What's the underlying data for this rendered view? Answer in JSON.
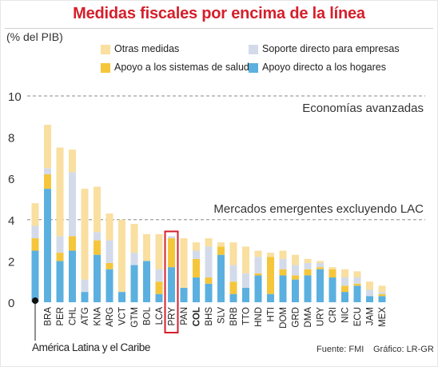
{
  "header": {
    "title": "Medidas fiscales por encima de la línea",
    "unit": "(% del PIB)"
  },
  "legend": [
    {
      "label": "Otras medidas",
      "color": "#f9dfa0"
    },
    {
      "label": "Soporte directo para empresas",
      "color": "#d3dbea"
    },
    {
      "label": "Apoyo a los sistemas de salud",
      "color": "#f5c63b"
    },
    {
      "label": "Apoyo directo a los hogares",
      "color": "#5bb0df"
    }
  ],
  "reference_lines": [
    {
      "value": 10,
      "label": "Economías avanzadas"
    },
    {
      "value": 4,
      "label": "Mercados emergentes excluyendo LAC"
    }
  ],
  "footer": {
    "latam_label": "América Latina y el Caribe",
    "source": "Fuente: FMI",
    "graphic": "Gráfico: LR-GR"
  },
  "colors": {
    "title": "#d51f2b",
    "highlight_box": "#d51f2b",
    "reference_line": "#888888"
  },
  "chart_data": {
    "type": "bar",
    "stacked": true,
    "ylim": [
      0,
      10
    ],
    "yticks": [
      0,
      2,
      4,
      6,
      8,
      10
    ],
    "ylabel": "(% del PIB)",
    "highlight_category": "PRY",
    "bold_category": "COL",
    "categories": [
      "",
      "BRA",
      "PER",
      "CHL",
      "ATG",
      "KNA",
      "ARG",
      "VCT",
      "GTM",
      "BOL",
      "LCA",
      "PRY",
      "PAN",
      "COL",
      "BHS",
      "SLV",
      "BRB",
      "TTO",
      "HND",
      "HTI",
      "DOM",
      "GRD",
      "DMA",
      "URY",
      "CRI",
      "NIC",
      "ECU",
      "JAM",
      "MEX"
    ],
    "series": [
      {
        "name": "Apoyo directo a los hogares",
        "color": "#5bb0df",
        "values": [
          2.5,
          5.5,
          2.0,
          2.5,
          0.5,
          2.3,
          1.6,
          0.5,
          1.8,
          2.0,
          0.4,
          1.7,
          0.7,
          1.2,
          0.9,
          2.3,
          0.4,
          0.7,
          1.3,
          0.4,
          1.3,
          1.1,
          1.3,
          1.6,
          1.2,
          0.5,
          0.8,
          0.3,
          0.3
        ]
      },
      {
        "name": "Apoyo a los sistemas de salud",
        "color": "#f5c63b",
        "values": [
          0.6,
          0.7,
          0.4,
          0.7,
          0.0,
          0.7,
          0.3,
          0.0,
          0.0,
          0.0,
          0.6,
          1.4,
          0.0,
          0.9,
          0.3,
          0.4,
          0.6,
          0.0,
          0.1,
          1.8,
          0.3,
          0.2,
          0.3,
          0.1,
          0.4,
          0.3,
          0.1,
          0.0,
          0.1
        ]
      },
      {
        "name": "Soporte directo para empresas",
        "color": "#d3dbea",
        "values": [
          0.6,
          0.3,
          0.8,
          3.1,
          0.6,
          0.4,
          1.1,
          0.0,
          0.6,
          0.0,
          0.6,
          0.1,
          0.0,
          0.4,
          1.5,
          0.0,
          0.8,
          0.7,
          0.8,
          0.0,
          0.5,
          0.5,
          0.3,
          0.2,
          0.0,
          0.4,
          0.3,
          0.3,
          0.1
        ]
      },
      {
        "name": "Otras medidas",
        "color": "#f9dfa0",
        "values": [
          1.1,
          2.1,
          4.3,
          1.1,
          4.4,
          2.2,
          1.3,
          3.5,
          1.4,
          1.3,
          1.7,
          0.0,
          2.4,
          0.4,
          0.4,
          0.2,
          1.1,
          1.3,
          0.3,
          0.2,
          0.4,
          0.5,
          0.2,
          0.1,
          0.1,
          0.4,
          0.3,
          0.4,
          0.3
        ]
      }
    ]
  }
}
